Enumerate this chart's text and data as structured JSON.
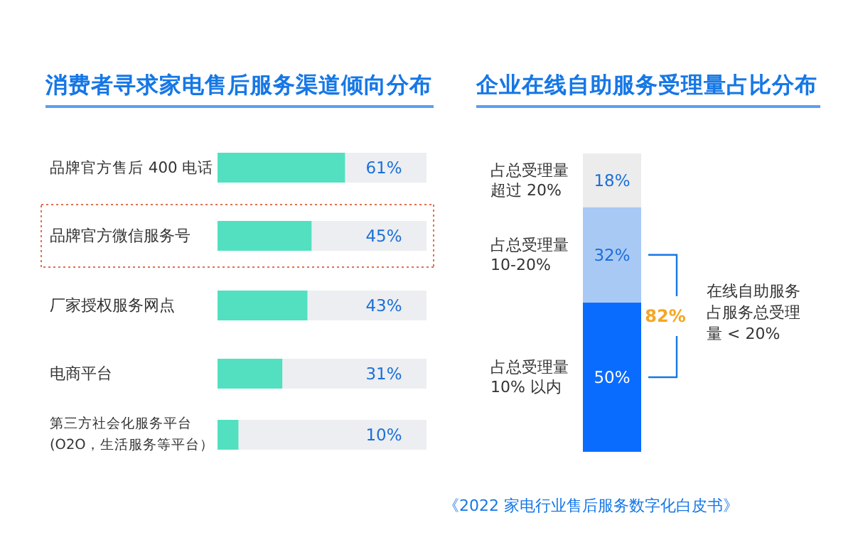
{
  "chart_data": [
    {
      "type": "bar",
      "title": "消费者寻求家电售后服务渠道倾向分布",
      "orientation": "horizontal",
      "categories": [
        "品牌官方售后 400 电话",
        "品牌官方微信服务号",
        "厂家授权服务网点",
        "电商平台",
        "第三方社会化服务平台\n(O2O，生活服务等平台）"
      ],
      "values": [
        61,
        45,
        43,
        31,
        10
      ],
      "color": "#52e0c0",
      "xlim": [
        0,
        100
      ],
      "data_labels": true,
      "value_labels": [
        "61%",
        "45%",
        "43%",
        "31%",
        "10%"
      ]
    },
    {
      "type": "bar",
      "title": "企业在线自助服务受理量占比分布",
      "stacked": true,
      "categories": [
        null
      ],
      "ylim": [
        0,
        100
      ],
      "series": [
        {
          "name": "占总受理量10% 以内",
          "color": "#0a6cff",
          "values": [
            50
          ],
          "value_labels": [
            "50%"
          ]
        },
        {
          "name": "占总受理量10-20%",
          "color": "#a9c9f5",
          "values": [
            32
          ],
          "value_labels": [
            "32%"
          ]
        },
        {
          "name": "占总受理量超过 20%",
          "color": "#ececec",
          "values": [
            18
          ],
          "value_labels": [
            "18%"
          ]
        }
      ],
      "annotations": [
        "82%",
        "在线自助服务占服务总受理量 < 20%",
        "《2022 家电行业售后服务数字化白皮书》"
      ]
    }
  ]
}
